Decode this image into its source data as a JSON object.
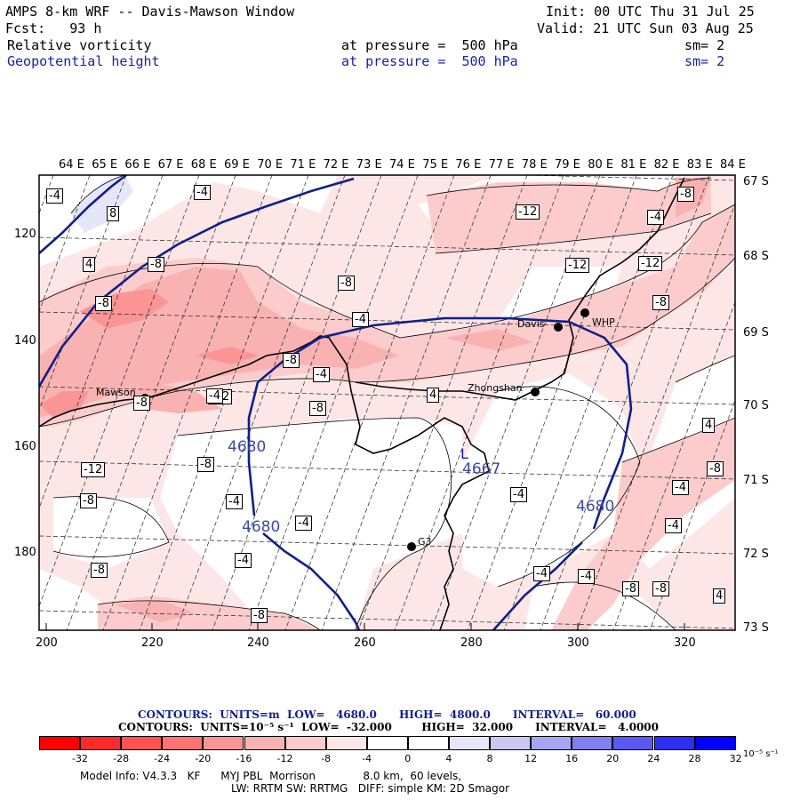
{
  "header": {
    "model_title": "AMPS 8-km WRF -- Davis-Mawson Window",
    "init": "Init: 00 UTC Thu 31 Jul 25",
    "fcst": "Fcst:   93 h",
    "valid": "Valid: 21 UTC Sun 03 Aug 25",
    "field1_name": "Relative vorticity",
    "field1_level": "at pressure =  500 hPa",
    "field1_sm": "sm= 2",
    "field2_name": "Geopotential height",
    "field2_level": "at pressure =  500 hPa",
    "field2_sm": "sm= 2"
  },
  "map": {
    "top_lon_labels": [
      "64 E",
      "65 E",
      "66 E",
      "67 E",
      "68 E",
      "69 E",
      "70 E",
      "71 E",
      "72 E",
      "73 E",
      "74 E",
      "75 E",
      "76 E",
      "77 E",
      "78 E",
      "79 E",
      "80 E",
      "81 E",
      "82 E",
      "83 E",
      "84 E"
    ],
    "right_lat_labels": [
      "67 S",
      "68 S",
      "69 S",
      "70 S",
      "71 S",
      "72 S",
      "73 S"
    ],
    "bottom_grid_labels": [
      "200",
      "220",
      "240",
      "260",
      "280",
      "300",
      "320"
    ],
    "left_grid_labels": [
      "120",
      "140",
      "160",
      "180"
    ],
    "stations": [
      {
        "name": "Mawson"
      },
      {
        "name": "Davis"
      },
      {
        "name": "WHP"
      },
      {
        "name": "Zhongshan"
      },
      {
        "name": "G3"
      }
    ],
    "height_contour_labels": [
      "4680",
      "4680",
      "4680",
      "4667"
    ],
    "low_marker": "L",
    "vorticity_labels": [
      "-4",
      "8",
      "-4",
      "4",
      "-8",
      "-12",
      "-4",
      "-8",
      "-8",
      "-12",
      "-12",
      "-8",
      "-8",
      "-4",
      "-8",
      "-4",
      "-8",
      "-12",
      "-8",
      "-12",
      "-8",
      "-8",
      "-4",
      "-4",
      "-4",
      "-4",
      "-4",
      "-4",
      "4",
      "-8",
      "-8",
      "-4",
      "-4",
      "-8",
      "-8",
      "-8",
      "4",
      "4",
      "-4"
    ]
  },
  "legend": {
    "contours_height": "CONTOURS:  UNITS=m  LOW=   4680.0      HIGH=  4800.0      INTERVAL=   60.000",
    "contours_vort": "CONTOURS:  UNITS=10⁻⁵ s⁻¹  LOW=  -32.000        HIGH=  32.000      INTERVAL=   4.0000",
    "colorbar_labels": [
      "-32",
      "-28",
      "-24",
      "-20",
      "-16",
      "-12",
      "-8",
      "-4",
      "0",
      "4",
      "8",
      "12",
      "16",
      "20",
      "24",
      "28",
      "32"
    ],
    "colorbar_unit": "10⁻⁵ s⁻¹",
    "colorbar_colors": [
      "#ff0000",
      "#ff2a2a",
      "#ff5252",
      "#ff7373",
      "#fb9595",
      "#f9b2b2",
      "#fccccc",
      "#fde6e6",
      "#ffffff",
      "#ffffff",
      "#e6e6fb",
      "#c9c9f6",
      "#a5a5f3",
      "#8080f0",
      "#5a5af2",
      "#2e2ef5",
      "#0000ff"
    ]
  },
  "footer": {
    "model_info": "Model Info: V4.3.3   KF      MYJ PBL  Morrison              8.0 km,  60 levels,",
    "model_info2": "LW: RRTM SW: RRTMG   DIFF: simple KM: 2D Smagor"
  }
}
